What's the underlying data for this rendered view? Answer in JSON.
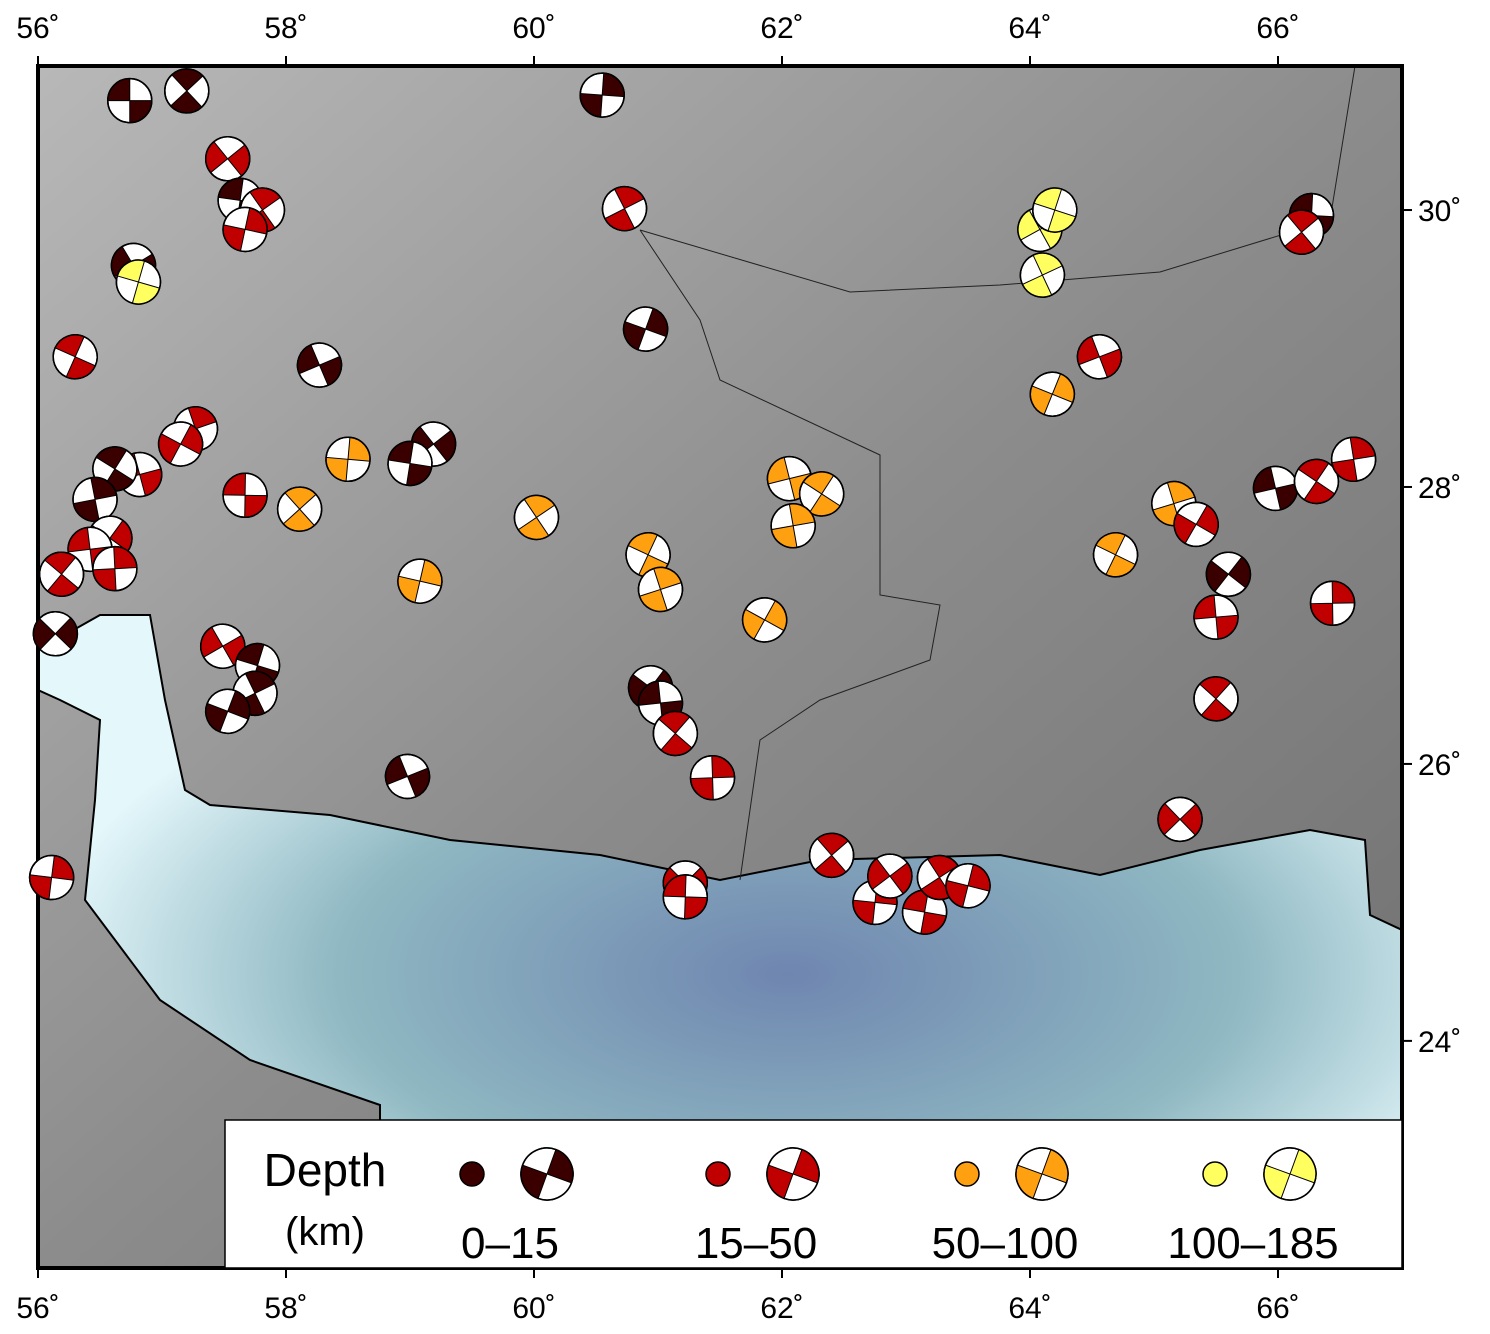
{
  "map": {
    "lon_range": [
      56,
      67
    ],
    "lat_range": [
      22.36,
      31.04
    ],
    "lon_ticks": [
      {
        "value": 56,
        "label": "56˚"
      },
      {
        "value": 58,
        "label": "58˚"
      },
      {
        "value": 60,
        "label": "60˚"
      },
      {
        "value": 62,
        "label": "62˚"
      },
      {
        "value": 64,
        "label": "64˚"
      },
      {
        "value": 66,
        "label": "66˚"
      }
    ],
    "lat_ticks": [
      {
        "value": 30,
        "label": "30˚"
      },
      {
        "value": 28,
        "label": "28˚"
      },
      {
        "value": 26,
        "label": "26˚"
      },
      {
        "value": 24,
        "label": "24˚"
      }
    ],
    "legend": {
      "title": "Depth",
      "unit": "(km)",
      "classes": [
        {
          "label": "0–15",
          "color": "#3a0000"
        },
        {
          "label": "15–50",
          "color": "#c00000"
        },
        {
          "label": "50–100",
          "color": "#ffa010"
        },
        {
          "label": "100–185",
          "color": "#ffff60"
        }
      ]
    },
    "events": [
      {
        "lon": 56.74,
        "lat": 30.79,
        "class": 0
      },
      {
        "lon": 57.2,
        "lat": 30.86,
        "class": 0
      },
      {
        "lon": 60.55,
        "lat": 30.83,
        "class": 0
      },
      {
        "lon": 57.53,
        "lat": 30.37,
        "class": 1
      },
      {
        "lon": 57.63,
        "lat": 30.07,
        "class": 0
      },
      {
        "lon": 57.81,
        "lat": 30.0,
        "class": 1
      },
      {
        "lon": 57.67,
        "lat": 29.86,
        "class": 1
      },
      {
        "lon": 56.77,
        "lat": 29.6,
        "class": 0
      },
      {
        "lon": 56.81,
        "lat": 29.48,
        "class": 3
      },
      {
        "lon": 60.73,
        "lat": 30.01,
        "class": 1
      },
      {
        "lon": 60.9,
        "lat": 29.14,
        "class": 0
      },
      {
        "lon": 58.27,
        "lat": 28.88,
        "class": 0
      },
      {
        "lon": 56.3,
        "lat": 28.94,
        "class": 1
      },
      {
        "lon": 57.27,
        "lat": 28.42,
        "class": 1
      },
      {
        "lon": 57.15,
        "lat": 28.31,
        "class": 1
      },
      {
        "lon": 56.82,
        "lat": 28.09,
        "class": 1
      },
      {
        "lon": 56.62,
        "lat": 28.13,
        "class": 0
      },
      {
        "lon": 56.46,
        "lat": 27.91,
        "class": 0
      },
      {
        "lon": 56.58,
        "lat": 27.63,
        "class": 1
      },
      {
        "lon": 56.42,
        "lat": 27.55,
        "class": 1
      },
      {
        "lon": 56.19,
        "lat": 27.37,
        "class": 1
      },
      {
        "lon": 56.62,
        "lat": 27.41,
        "class": 1
      },
      {
        "lon": 56.14,
        "lat": 26.94,
        "class": 0
      },
      {
        "lon": 57.67,
        "lat": 27.94,
        "class": 1
      },
      {
        "lon": 58.11,
        "lat": 27.84,
        "class": 2
      },
      {
        "lon": 58.5,
        "lat": 28.2,
        "class": 2
      },
      {
        "lon": 59.19,
        "lat": 28.31,
        "class": 0
      },
      {
        "lon": 59.0,
        "lat": 28.17,
        "class": 0
      },
      {
        "lon": 60.02,
        "lat": 27.78,
        "class": 2
      },
      {
        "lon": 59.08,
        "lat": 27.32,
        "class": 2
      },
      {
        "lon": 57.49,
        "lat": 26.85,
        "class": 1
      },
      {
        "lon": 57.77,
        "lat": 26.71,
        "class": 0
      },
      {
        "lon": 57.75,
        "lat": 26.51,
        "class": 0
      },
      {
        "lon": 57.53,
        "lat": 26.38,
        "class": 0
      },
      {
        "lon": 58.98,
        "lat": 25.91,
        "class": 0
      },
      {
        "lon": 60.92,
        "lat": 27.51,
        "class": 2
      },
      {
        "lon": 61.02,
        "lat": 27.26,
        "class": 2
      },
      {
        "lon": 61.86,
        "lat": 27.04,
        "class": 2
      },
      {
        "lon": 62.06,
        "lat": 28.06,
        "class": 2
      },
      {
        "lon": 62.32,
        "lat": 27.95,
        "class": 2
      },
      {
        "lon": 62.09,
        "lat": 27.72,
        "class": 2
      },
      {
        "lon": 60.94,
        "lat": 26.55,
        "class": 0
      },
      {
        "lon": 61.02,
        "lat": 26.44,
        "class": 0
      },
      {
        "lon": 61.14,
        "lat": 26.22,
        "class": 1
      },
      {
        "lon": 61.44,
        "lat": 25.9,
        "class": 1
      },
      {
        "lon": 61.22,
        "lat": 25.14,
        "class": 1
      },
      {
        "lon": 61.22,
        "lat": 25.04,
        "class": 1
      },
      {
        "lon": 62.4,
        "lat": 25.34,
        "class": 1
      },
      {
        "lon": 62.75,
        "lat": 25.0,
        "class": 1
      },
      {
        "lon": 62.87,
        "lat": 25.19,
        "class": 1
      },
      {
        "lon": 63.15,
        "lat": 24.93,
        "class": 1
      },
      {
        "lon": 63.27,
        "lat": 25.18,
        "class": 1
      },
      {
        "lon": 63.5,
        "lat": 25.12,
        "class": 1
      },
      {
        "lon": 64.08,
        "lat": 29.86,
        "class": 3
      },
      {
        "lon": 64.2,
        "lat": 30.0,
        "class": 3
      },
      {
        "lon": 64.1,
        "lat": 29.53,
        "class": 3
      },
      {
        "lon": 64.18,
        "lat": 28.67,
        "class": 2
      },
      {
        "lon": 64.56,
        "lat": 28.94,
        "class": 1
      },
      {
        "lon": 64.69,
        "lat": 27.51,
        "class": 2
      },
      {
        "lon": 65.16,
        "lat": 27.88,
        "class": 2
      },
      {
        "lon": 65.34,
        "lat": 27.73,
        "class": 1
      },
      {
        "lon": 65.98,
        "lat": 27.99,
        "class": 0
      },
      {
        "lon": 66.31,
        "lat": 28.04,
        "class": 1
      },
      {
        "lon": 66.61,
        "lat": 28.2,
        "class": 1
      },
      {
        "lon": 65.6,
        "lat": 27.37,
        "class": 0
      },
      {
        "lon": 65.5,
        "lat": 27.06,
        "class": 1
      },
      {
        "lon": 65.5,
        "lat": 26.47,
        "class": 1
      },
      {
        "lon": 66.44,
        "lat": 27.16,
        "class": 1
      },
      {
        "lon": 65.21,
        "lat": 25.6,
        "class": 1
      },
      {
        "lon": 66.27,
        "lat": 29.96,
        "class": 0
      },
      {
        "lon": 66.19,
        "lat": 29.84,
        "class": 1
      },
      {
        "lon": 56.11,
        "lat": 25.18,
        "class": 1
      }
    ]
  }
}
